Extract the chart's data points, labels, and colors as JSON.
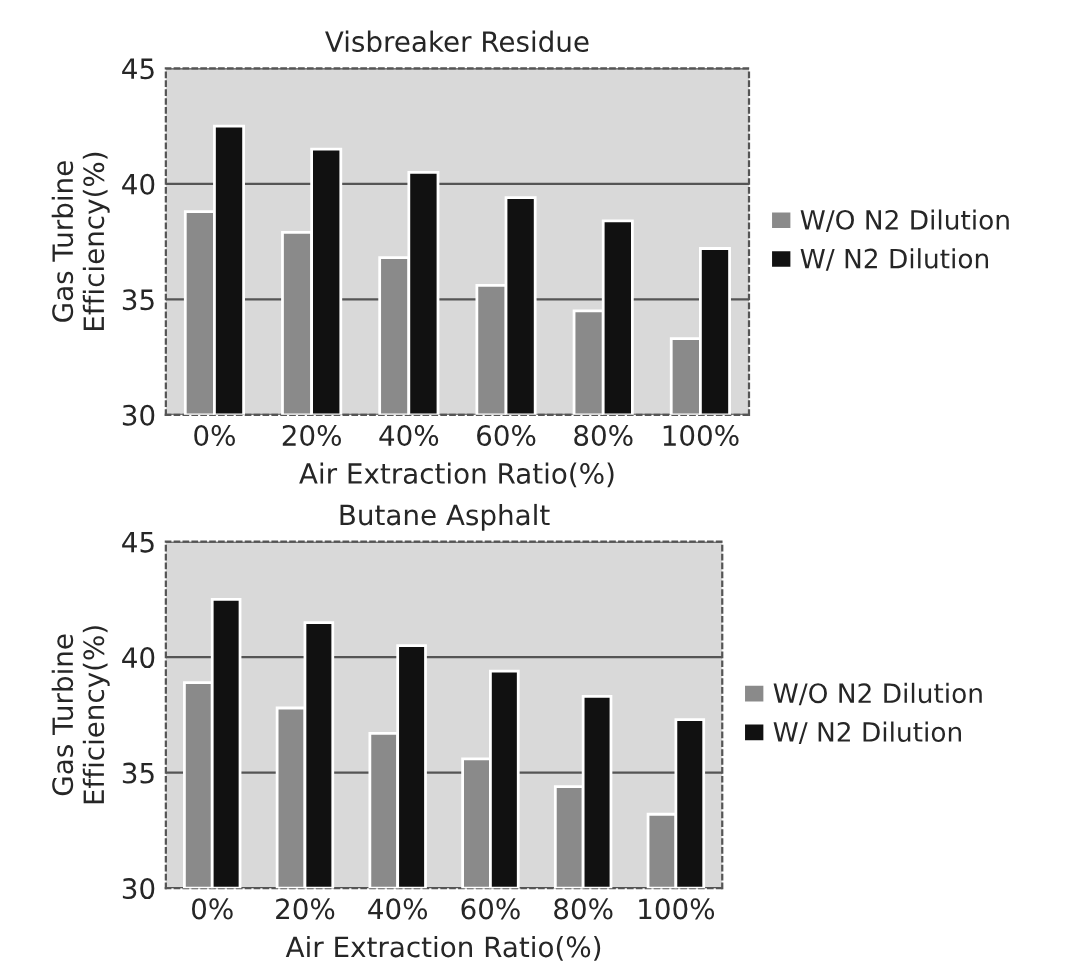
{
  "chart_data": [
    {
      "type": "bar",
      "title": "Visbreaker Residue",
      "xlabel": "Air Extraction Ratio(%)",
      "ylabel": "Gas Turbine\nEfficiency(%)",
      "categories": [
        "0%",
        "20%",
        "40%",
        "60%",
        "80%",
        "100%"
      ],
      "series": [
        {
          "name": "W/O N2 Dilution",
          "color": "#8a8a8a",
          "values": [
            38.8,
            37.9,
            36.8,
            35.6,
            34.5,
            33.3
          ]
        },
        {
          "name": "W/ N2 Dilution",
          "color": "#111111",
          "values": [
            42.5,
            41.5,
            40.5,
            39.4,
            38.4,
            37.2
          ]
        }
      ],
      "ylim": [
        30,
        45
      ],
      "yticks": [
        30,
        35,
        40,
        45
      ],
      "grid": "y",
      "legend": "right"
    },
    {
      "type": "bar",
      "title": "Butane Asphalt",
      "xlabel": "Air Extraction Ratio(%)",
      "ylabel": "Gas Turbine\nEfficiency(%)",
      "categories": [
        "0%",
        "20%",
        "40%",
        "60%",
        "80%",
        "100%"
      ],
      "series": [
        {
          "name": "W/O N2 Dilution",
          "color": "#8a8a8a",
          "values": [
            38.9,
            37.8,
            36.7,
            35.6,
            34.4,
            33.2
          ]
        },
        {
          "name": "W/ N2 Dilution",
          "color": "#111111",
          "values": [
            42.5,
            41.5,
            40.5,
            39.4,
            38.3,
            37.3
          ]
        }
      ],
      "ylim": [
        30,
        45
      ],
      "yticks": [
        30,
        35,
        40,
        45
      ],
      "grid": "y",
      "legend": "right"
    }
  ]
}
